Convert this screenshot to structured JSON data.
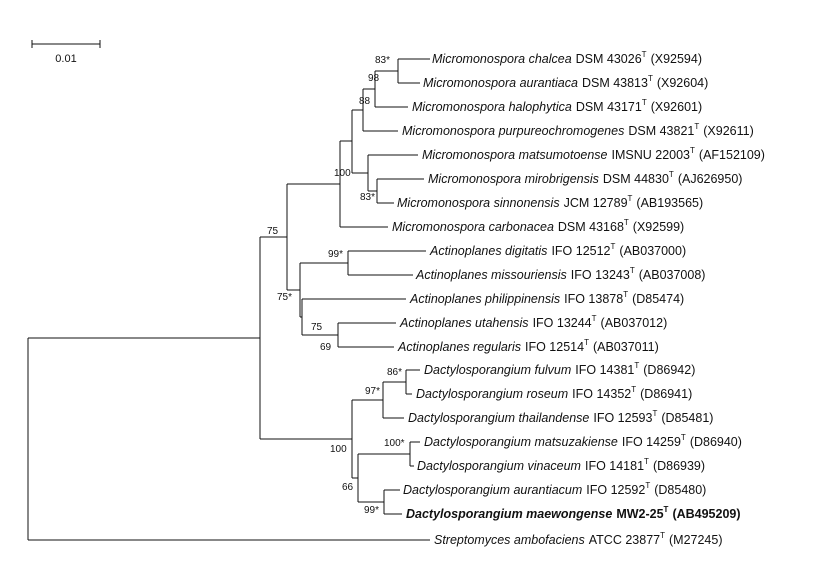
{
  "scale_bar": {
    "label": "0.01"
  },
  "leaves": [
    {
      "species": "Micromonospora chalcea",
      "strain": "DSM 43026",
      "type_mark": "T",
      "accession": "(X92594)"
    },
    {
      "species": "Micromonospora aurantiaca",
      "strain": "DSM 43813",
      "type_mark": "T",
      "accession": "(X92604)"
    },
    {
      "species": "Micromonospora halophytica",
      "strain": "DSM 43171",
      "type_mark": "T",
      "accession": "(X92601)"
    },
    {
      "species": "Micromonospora purpureochromogenes",
      "strain": "DSM 43821",
      "type_mark": "T",
      "accession": "(X92611)"
    },
    {
      "species": "Micromonospora matsumotoense",
      "strain": "IMSNU 22003",
      "type_mark": "T",
      "accession": "(AF152109)"
    },
    {
      "species": "Micromonospora mirobrigensis",
      "strain": "DSM 44830",
      "type_mark": "T",
      "accession": "(AJ626950)"
    },
    {
      "species": "Micromonospora sinnonensis",
      "strain": "JCM 12789",
      "type_mark": "T",
      "accession": "(AB193565)"
    },
    {
      "species": "Micromonospora carbonacea",
      "strain": "DSM 43168",
      "type_mark": "T",
      "accession": "(X92599)"
    },
    {
      "species": "Actinoplanes digitatis",
      "strain": "IFO 12512",
      "type_mark": "T",
      "accession": "(AB037000)"
    },
    {
      "species": "Actinoplanes missouriensis",
      "strain": "IFO 13243",
      "type_mark": "T",
      "accession": "(AB037008)"
    },
    {
      "species": "Actinoplanes philippinensis",
      "strain": "IFO 13878",
      "type_mark": "T",
      "accession": "(D85474)"
    },
    {
      "species": "Actinoplanes utahensis",
      "strain": "IFO 13244",
      "type_mark": "T",
      "accession": "(AB037012)"
    },
    {
      "species": "Actinoplanes regularis",
      "strain": "IFO 12514",
      "type_mark": "T",
      "accession": "(AB037011)"
    },
    {
      "species": "Dactylosporangium fulvum",
      "strain": "IFO 14381",
      "type_mark": "T",
      "accession": "(D86942)"
    },
    {
      "species": "Dactylosporangium roseum",
      "strain": "IFO 14352",
      "type_mark": "T",
      "accession": "(D86941)"
    },
    {
      "species": "Dactylosporangium thailandense",
      "strain": "IFO 12593",
      "type_mark": "T",
      "accession": "(D85481)"
    },
    {
      "species": "Dactylosporangium matsuzakiense",
      "strain": "IFO 14259",
      "type_mark": "T",
      "accession": "(D86940)"
    },
    {
      "species": "Dactylosporangium vinaceum",
      "strain": "IFO 14181",
      "type_mark": "T",
      "accession": "(D86939)"
    },
    {
      "species": "Dactylosporangium aurantiacum",
      "strain": "IFO 12592",
      "type_mark": "T",
      "accession": "(D85480)"
    },
    {
      "species": "Dactylosporangium maewongense",
      "strain": "MW2-25",
      "type_mark": "T",
      "accession": "(AB495209)",
      "highlight": true
    },
    {
      "species": "Streptomyces ambofaciens",
      "strain": "ATCC 23877",
      "type_mark": "T",
      "accession": "(M27245)"
    }
  ],
  "support_values": [
    "83*",
    "98",
    "88",
    "83*",
    "100",
    "75",
    "99*",
    "75*",
    "75",
    "69",
    "86*",
    "97*",
    "100*",
    "100",
    "66",
    "99*"
  ]
}
